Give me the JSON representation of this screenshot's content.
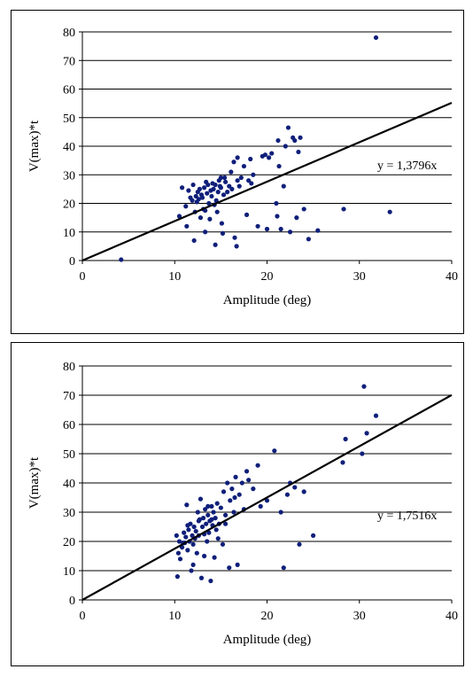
{
  "chart_data": [
    {
      "type": "scatter",
      "xlabel": "Amplitude (deg)",
      "ylabel": "V(max)*t",
      "xlim": [
        0,
        40
      ],
      "ylim": [
        0,
        80
      ],
      "xticks": [
        0,
        10,
        20,
        30,
        40
      ],
      "yticks": [
        0,
        10,
        20,
        30,
        40,
        50,
        60,
        70,
        80
      ],
      "grid": "horizontal",
      "marker_color": "#0f1f7a",
      "trendline": {
        "slope": 1.3796,
        "label": "y = 1,3796x"
      },
      "series": [
        {
          "points": [
            [
              4.2,
              0.3
            ],
            [
              10.5,
              15.5
            ],
            [
              10.8,
              25.5
            ],
            [
              11.2,
              19
            ],
            [
              11.3,
              12
            ],
            [
              11.5,
              24.5
            ],
            [
              11.7,
              22
            ],
            [
              11.9,
              21
            ],
            [
              12,
              26.5
            ],
            [
              12.1,
              7
            ],
            [
              12.2,
              17
            ],
            [
              12.3,
              22.5
            ],
            [
              12.4,
              20.5
            ],
            [
              12.5,
              24
            ],
            [
              12.6,
              21.5
            ],
            [
              12.7,
              25
            ],
            [
              12.8,
              15
            ],
            [
              12.9,
              23
            ],
            [
              13,
              22
            ],
            [
              13.1,
              18
            ],
            [
              13.2,
              25.5
            ],
            [
              13.3,
              10
            ],
            [
              13.4,
              27.5
            ],
            [
              13.5,
              23.5
            ],
            [
              13.6,
              26.5
            ],
            [
              13.7,
              20
            ],
            [
              13.8,
              14.5
            ],
            [
              13.9,
              24.5
            ],
            [
              14,
              22.5
            ],
            [
              14.1,
              27
            ],
            [
              14.2,
              25
            ],
            [
              14.3,
              19.5
            ],
            [
              14.4,
              26.5
            ],
            [
              14.5,
              21
            ],
            [
              14.6,
              17
            ],
            [
              14.7,
              24
            ],
            [
              14.8,
              28
            ],
            [
              14.9,
              26
            ],
            [
              15,
              25.5
            ],
            [
              15.1,
              13
            ],
            [
              15.2,
              9.5
            ],
            [
              15.3,
              23
            ],
            [
              15.4,
              29
            ],
            [
              15.5,
              27.5
            ],
            [
              15.7,
              24
            ],
            [
              15.9,
              26
            ],
            [
              16.1,
              31
            ],
            [
              16.2,
              25
            ],
            [
              16.4,
              34.5
            ],
            [
              16.5,
              8
            ],
            [
              16.7,
              5
            ],
            [
              16.8,
              28
            ],
            [
              17,
              26
            ],
            [
              17.2,
              29
            ],
            [
              17.5,
              33
            ],
            [
              17.8,
              16
            ],
            [
              18,
              28
            ],
            [
              18.2,
              35.5
            ],
            [
              18.3,
              27
            ],
            [
              18.5,
              30
            ],
            [
              19,
              12
            ],
            [
              19.5,
              36.5
            ],
            [
              19.8,
              37
            ],
            [
              20,
              11
            ],
            [
              20.2,
              36
            ],
            [
              20.5,
              37.5
            ],
            [
              21,
              20
            ],
            [
              21.1,
              15.5
            ],
            [
              21.2,
              42
            ],
            [
              21.3,
              33
            ],
            [
              21.5,
              11
            ],
            [
              21.8,
              26
            ],
            [
              22,
              40
            ],
            [
              22.3,
              46.5
            ],
            [
              22.5,
              10
            ],
            [
              22.8,
              43
            ],
            [
              23,
              42
            ],
            [
              23.2,
              15
            ],
            [
              23.4,
              38
            ],
            [
              23.6,
              43
            ],
            [
              24,
              18
            ],
            [
              24.5,
              7.5
            ],
            [
              25.5,
              10.5
            ],
            [
              28.3,
              18
            ],
            [
              31.8,
              78
            ],
            [
              33.3,
              17
            ],
            [
              14.4,
              5.5
            ],
            [
              15,
              29
            ],
            [
              16.8,
              36
            ],
            [
              13.3,
              17.5
            ]
          ]
        }
      ]
    },
    {
      "type": "scatter",
      "xlabel": "Amplitude (deg)",
      "ylabel": "V(max)*t",
      "xlim": [
        0,
        40
      ],
      "ylim": [
        0,
        80
      ],
      "xticks": [
        0,
        10,
        20,
        30,
        40
      ],
      "yticks": [
        0,
        10,
        20,
        30,
        40,
        50,
        60,
        70,
        80
      ],
      "grid": "horizontal",
      "marker_color": "#0f1f7a",
      "trendline": {
        "slope": 1.7516,
        "label": "y = 1,7516x"
      },
      "series": [
        {
          "points": [
            [
              10.2,
              22
            ],
            [
              10.3,
              8
            ],
            [
              10.4,
              16
            ],
            [
              10.5,
              20
            ],
            [
              10.6,
              14
            ],
            [
              10.8,
              18
            ],
            [
              11,
              23
            ],
            [
              11.1,
              19.5
            ],
            [
              11.2,
              21.5
            ],
            [
              11.3,
              32.5
            ],
            [
              11.4,
              17
            ],
            [
              11.5,
              24
            ],
            [
              11.6,
              20
            ],
            [
              11.7,
              26
            ],
            [
              11.8,
              10
            ],
            [
              11.9,
              22
            ],
            [
              12,
              19
            ],
            [
              12.1,
              25
            ],
            [
              12.2,
              21
            ],
            [
              12.3,
              23.5
            ],
            [
              12.4,
              16
            ],
            [
              12.5,
              30
            ],
            [
              12.6,
              22
            ],
            [
              12.7,
              27.5
            ],
            [
              12.8,
              34.5
            ],
            [
              12.9,
              7.5
            ],
            [
              13,
              25
            ],
            [
              13.1,
              28
            ],
            [
              13.2,
              22.5
            ],
            [
              13.3,
              31
            ],
            [
              13.4,
              26
            ],
            [
              13.5,
              20
            ],
            [
              13.6,
              29
            ],
            [
              13.7,
              23
            ],
            [
              13.8,
              27
            ],
            [
              13.9,
              6.5
            ],
            [
              14,
              32
            ],
            [
              14.1,
              25.5
            ],
            [
              14.2,
              30
            ],
            [
              14.3,
              14.5
            ],
            [
              14.4,
              28
            ],
            [
              14.5,
              24
            ],
            [
              14.6,
              33
            ],
            [
              14.8,
              26
            ],
            [
              15,
              31.5
            ],
            [
              15.2,
              19
            ],
            [
              15.3,
              37
            ],
            [
              15.5,
              29
            ],
            [
              15.7,
              40
            ],
            [
              15.9,
              11
            ],
            [
              16,
              34
            ],
            [
              16.2,
              38
            ],
            [
              16.4,
              30
            ],
            [
              16.6,
              42
            ],
            [
              16.8,
              12
            ],
            [
              17,
              36
            ],
            [
              17.3,
              40
            ],
            [
              17.5,
              31
            ],
            [
              17.8,
              44
            ],
            [
              18,
              41
            ],
            [
              18.5,
              38
            ],
            [
              19,
              46
            ],
            [
              19.3,
              32
            ],
            [
              20,
              34
            ],
            [
              20.8,
              51
            ],
            [
              21.5,
              30
            ],
            [
              21.8,
              11
            ],
            [
              22.2,
              36
            ],
            [
              22.5,
              40
            ],
            [
              23,
              38.5
            ],
            [
              23.5,
              19
            ],
            [
              24,
              37
            ],
            [
              25,
              22
            ],
            [
              28.2,
              47
            ],
            [
              28.5,
              55
            ],
            [
              30.3,
              50
            ],
            [
              30.5,
              73
            ],
            [
              30.8,
              57
            ],
            [
              31.8,
              63
            ],
            [
              13.2,
              15
            ],
            [
              14.7,
              21
            ],
            [
              15.5,
              26
            ],
            [
              12,
              12
            ],
            [
              16.5,
              35
            ],
            [
              11.4,
              25.5
            ],
            [
              10.9,
              19.5
            ],
            [
              12.6,
              27
            ],
            [
              14,
              27.5
            ],
            [
              13.6,
              32
            ]
          ]
        }
      ]
    }
  ]
}
